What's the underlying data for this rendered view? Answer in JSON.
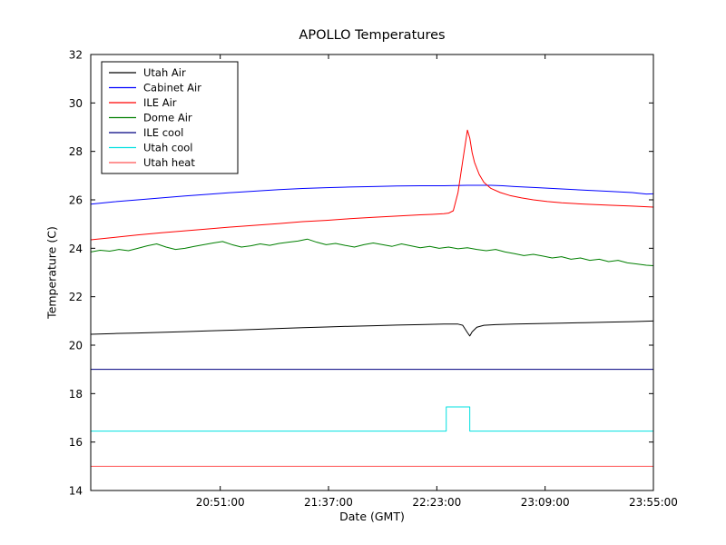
{
  "figure": {
    "title": "APOLLO Temperatures",
    "xlabel": "Date (GMT)",
    "ylabel": "Temperature (C)"
  },
  "chart_data": {
    "type": "line",
    "title": "APOLLO Temperatures",
    "xlabel": "Date (GMT)",
    "ylabel": "Temperature (C)",
    "grid": false,
    "legend_position": "upper-left",
    "xlim": [
      0,
      239
    ],
    "ylim": [
      14,
      32
    ],
    "x_ticks": [
      {
        "t": 55,
        "label": "20:51:00"
      },
      {
        "t": 101,
        "label": "21:37:00"
      },
      {
        "t": 147,
        "label": "22:23:00"
      },
      {
        "t": 193,
        "label": "23:09:00"
      },
      {
        "t": 239,
        "label": "23:55:00"
      }
    ],
    "y_ticks": [
      {
        "v": 14,
        "label": "14"
      },
      {
        "v": 16,
        "label": "16"
      },
      {
        "v": 18,
        "label": "18"
      },
      {
        "v": 20,
        "label": "20"
      },
      {
        "v": 22,
        "label": "22"
      },
      {
        "v": 24,
        "label": "24"
      },
      {
        "v": 26,
        "label": "26"
      },
      {
        "v": 28,
        "label": "28"
      },
      {
        "v": 30,
        "label": "30"
      },
      {
        "v": 32,
        "label": "32"
      }
    ],
    "series": [
      {
        "name": "Utah Air",
        "color": "#000000",
        "points": [
          [
            0,
            20.45
          ],
          [
            10,
            20.48
          ],
          [
            20,
            20.5
          ],
          [
            30,
            20.53
          ],
          [
            40,
            20.56
          ],
          [
            50,
            20.59
          ],
          [
            60,
            20.62
          ],
          [
            70,
            20.65
          ],
          [
            80,
            20.69
          ],
          [
            90,
            20.72
          ],
          [
            100,
            20.75
          ],
          [
            110,
            20.78
          ],
          [
            120,
            20.8
          ],
          [
            130,
            20.83
          ],
          [
            140,
            20.85
          ],
          [
            150,
            20.87
          ],
          [
            156,
            20.87
          ],
          [
            158,
            20.82
          ],
          [
            160,
            20.52
          ],
          [
            161,
            20.38
          ],
          [
            162,
            20.55
          ],
          [
            164,
            20.74
          ],
          [
            167,
            20.82
          ],
          [
            172,
            20.85
          ],
          [
            180,
            20.87
          ],
          [
            190,
            20.89
          ],
          [
            200,
            20.91
          ],
          [
            210,
            20.93
          ],
          [
            220,
            20.95
          ],
          [
            230,
            20.97
          ],
          [
            239,
            21.0
          ]
        ]
      },
      {
        "name": "Cabinet Air",
        "color": "#0000ff",
        "points": [
          [
            0,
            25.82
          ],
          [
            10,
            25.92
          ],
          [
            20,
            26.0
          ],
          [
            30,
            26.08
          ],
          [
            40,
            26.16
          ],
          [
            50,
            26.23
          ],
          [
            60,
            26.3
          ],
          [
            70,
            26.36
          ],
          [
            80,
            26.42
          ],
          [
            90,
            26.47
          ],
          [
            100,
            26.5
          ],
          [
            110,
            26.53
          ],
          [
            120,
            26.55
          ],
          [
            130,
            26.57
          ],
          [
            140,
            26.58
          ],
          [
            150,
            26.58
          ],
          [
            160,
            26.6
          ],
          [
            170,
            26.6
          ],
          [
            175,
            26.58
          ],
          [
            180,
            26.55
          ],
          [
            190,
            26.5
          ],
          [
            200,
            26.45
          ],
          [
            210,
            26.4
          ],
          [
            220,
            26.35
          ],
          [
            230,
            26.3
          ],
          [
            236,
            26.24
          ],
          [
            239,
            26.25
          ]
        ]
      },
      {
        "name": "ILE Air",
        "color": "#ff0000",
        "points": [
          [
            0,
            24.35
          ],
          [
            10,
            24.45
          ],
          [
            20,
            24.55
          ],
          [
            30,
            24.64
          ],
          [
            40,
            24.72
          ],
          [
            50,
            24.8
          ],
          [
            60,
            24.88
          ],
          [
            70,
            24.95
          ],
          [
            80,
            25.02
          ],
          [
            90,
            25.1
          ],
          [
            100,
            25.15
          ],
          [
            110,
            25.22
          ],
          [
            120,
            25.28
          ],
          [
            130,
            25.33
          ],
          [
            140,
            25.38
          ],
          [
            145,
            25.4
          ],
          [
            150,
            25.43
          ],
          [
            152,
            25.45
          ],
          [
            154,
            25.55
          ],
          [
            156,
            26.3
          ],
          [
            158,
            27.6
          ],
          [
            160,
            28.88
          ],
          [
            161,
            28.55
          ],
          [
            162,
            27.95
          ],
          [
            163,
            27.55
          ],
          [
            165,
            27.05
          ],
          [
            167,
            26.72
          ],
          [
            170,
            26.47
          ],
          [
            174,
            26.3
          ],
          [
            178,
            26.18
          ],
          [
            183,
            26.08
          ],
          [
            188,
            26.0
          ],
          [
            194,
            25.93
          ],
          [
            200,
            25.88
          ],
          [
            210,
            25.82
          ],
          [
            220,
            25.78
          ],
          [
            230,
            25.74
          ],
          [
            239,
            25.7
          ]
        ]
      },
      {
        "name": "Dome Air",
        "color": "#007f00",
        "points": [
          [
            0,
            23.85
          ],
          [
            4,
            23.92
          ],
          [
            8,
            23.88
          ],
          [
            12,
            23.95
          ],
          [
            16,
            23.9
          ],
          [
            20,
            24.0
          ],
          [
            24,
            24.1
          ],
          [
            28,
            24.18
          ],
          [
            32,
            24.05
          ],
          [
            36,
            23.95
          ],
          [
            40,
            24.0
          ],
          [
            44,
            24.08
          ],
          [
            48,
            24.15
          ],
          [
            52,
            24.22
          ],
          [
            56,
            24.28
          ],
          [
            60,
            24.15
          ],
          [
            64,
            24.05
          ],
          [
            68,
            24.1
          ],
          [
            72,
            24.18
          ],
          [
            76,
            24.12
          ],
          [
            80,
            24.2
          ],
          [
            84,
            24.25
          ],
          [
            88,
            24.3
          ],
          [
            92,
            24.38
          ],
          [
            96,
            24.25
          ],
          [
            100,
            24.15
          ],
          [
            104,
            24.2
          ],
          [
            108,
            24.12
          ],
          [
            112,
            24.05
          ],
          [
            116,
            24.15
          ],
          [
            120,
            24.22
          ],
          [
            124,
            24.15
          ],
          [
            128,
            24.08
          ],
          [
            132,
            24.18
          ],
          [
            136,
            24.1
          ],
          [
            140,
            24.02
          ],
          [
            144,
            24.08
          ],
          [
            148,
            24.0
          ],
          [
            152,
            24.05
          ],
          [
            156,
            23.98
          ],
          [
            160,
            24.02
          ],
          [
            164,
            23.95
          ],
          [
            168,
            23.9
          ],
          [
            172,
            23.95
          ],
          [
            176,
            23.85
          ],
          [
            180,
            23.78
          ],
          [
            184,
            23.7
          ],
          [
            188,
            23.75
          ],
          [
            192,
            23.68
          ],
          [
            196,
            23.6
          ],
          [
            200,
            23.65
          ],
          [
            204,
            23.55
          ],
          [
            208,
            23.6
          ],
          [
            212,
            23.5
          ],
          [
            216,
            23.55
          ],
          [
            220,
            23.45
          ],
          [
            224,
            23.5
          ],
          [
            228,
            23.4
          ],
          [
            232,
            23.35
          ],
          [
            236,
            23.3
          ],
          [
            239,
            23.28
          ]
        ]
      },
      {
        "name": "ILE cool",
        "color": "#000080",
        "points": [
          [
            0,
            19.0
          ],
          [
            239,
            19.0
          ]
        ]
      },
      {
        "name": "Utah cool",
        "color": "#00e0e0",
        "points": [
          [
            0,
            16.45
          ],
          [
            151,
            16.45
          ],
          [
            151,
            17.45
          ],
          [
            161,
            17.45
          ],
          [
            161,
            16.45
          ],
          [
            239,
            16.45
          ]
        ]
      },
      {
        "name": "Utah heat",
        "color": "#ff5555",
        "points": [
          [
            0,
            15.0
          ],
          [
            239,
            15.0
          ]
        ]
      }
    ]
  }
}
